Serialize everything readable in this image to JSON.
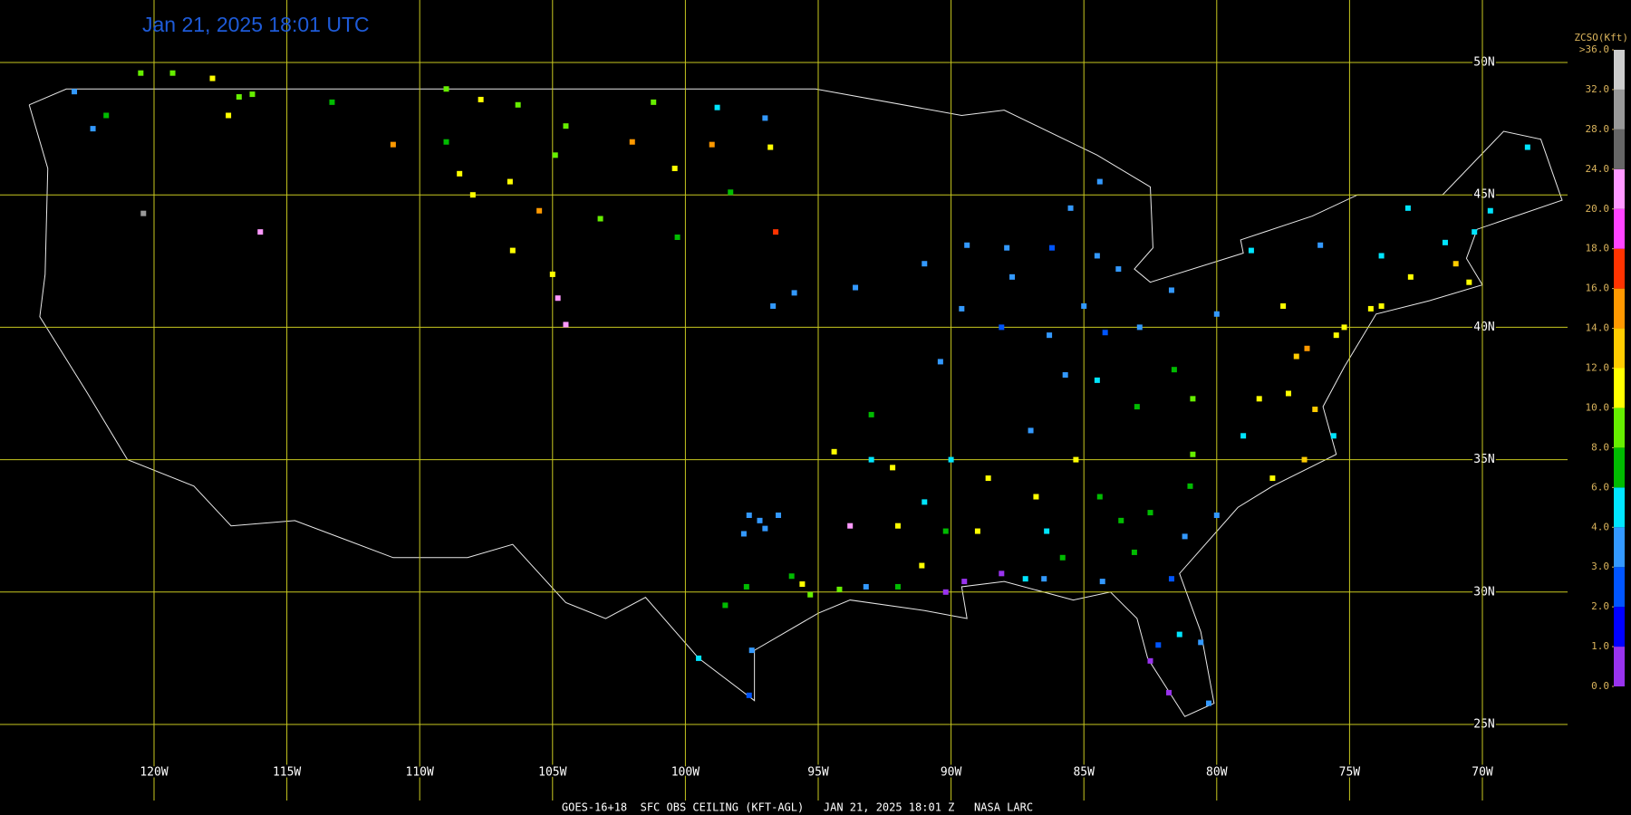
{
  "map": {
    "title": "Jan 21, 2025 18:01 UTC",
    "footer": "GOES-16+18  SFC OBS CEILING (KFT-AGL)   JAN 21, 2025 18:01 Z   NASA LARC",
    "lat_ticks": [
      {
        "value": 50,
        "label": "50N"
      },
      {
        "value": 45,
        "label": "45N"
      },
      {
        "value": 40,
        "label": "40N"
      },
      {
        "value": 35,
        "label": "35N"
      },
      {
        "value": 30,
        "label": "30N"
      },
      {
        "value": 25,
        "label": "25N"
      }
    ],
    "lon_ticks": [
      {
        "value": -120,
        "label": "120W"
      },
      {
        "value": -115,
        "label": "115W"
      },
      {
        "value": -110,
        "label": "110W"
      },
      {
        "value": -105,
        "label": "105W"
      },
      {
        "value": -100,
        "label": "100W"
      },
      {
        "value": -95,
        "label": "95W"
      },
      {
        "value": -90,
        "label": "90W"
      },
      {
        "value": -85,
        "label": "85W"
      },
      {
        "value": -80,
        "label": "80W"
      },
      {
        "value": -75,
        "label": "75W"
      },
      {
        "value": -70,
        "label": "70W"
      }
    ],
    "grid_color": "#c8c820",
    "legend": {
      "title": "ZCSO(Kft)",
      "ticks": [
        {
          "value": 0,
          "label": "0.0"
        },
        {
          "value": 1,
          "label": "1.0"
        },
        {
          "value": 2,
          "label": "2.0"
        },
        {
          "value": 3,
          "label": "3.0"
        },
        {
          "value": 4,
          "label": "4.0"
        },
        {
          "value": 6,
          "label": "6.0"
        },
        {
          "value": 8,
          "label": "8.0"
        },
        {
          "value": 10,
          "label": "10.0"
        },
        {
          "value": 12,
          "label": "12.0"
        },
        {
          "value": 14,
          "label": "14.0"
        },
        {
          "value": 16,
          "label": "16.0"
        },
        {
          "value": 18,
          "label": "18.0"
        },
        {
          "value": 20,
          "label": "20.0"
        },
        {
          "value": 24,
          "label": "24.0"
        },
        {
          "value": 28,
          "label": "28.0"
        },
        {
          "value": 32,
          "label": "32.0"
        },
        {
          "value": 36,
          "label": ">36.0"
        }
      ],
      "colors": [
        "#9933ee",
        "#0000ff",
        "#0055ff",
        "#3399ff",
        "#00e5ff",
        "#00bb00",
        "#66ee00",
        "#ffff00",
        "#ffcc00",
        "#ff9900",
        "#ff3300",
        "#ff44ff",
        "#ff99ff",
        "#666666",
        "#999999",
        "#cccccc"
      ]
    },
    "stations": [
      [
        -122.3,
        47.5,
        3
      ],
      [
        -123,
        48.9,
        3
      ],
      [
        -121.8,
        48,
        7
      ],
      [
        -120.5,
        49.6,
        9
      ],
      [
        -119.3,
        49.6,
        9
      ],
      [
        -117.8,
        49.4,
        11
      ],
      [
        -116.8,
        48.7,
        9
      ],
      [
        -116.3,
        48.8,
        8
      ],
      [
        -117.2,
        48,
        11
      ],
      [
        -113.3,
        48.5,
        7
      ],
      [
        -111,
        46.9,
        15
      ],
      [
        -109,
        49,
        8
      ],
      [
        -107.7,
        48.6,
        11
      ],
      [
        -106.3,
        48.4,
        9
      ],
      [
        -104.5,
        47.6,
        9
      ],
      [
        -109,
        47,
        7
      ],
      [
        -108.5,
        45.8,
        11
      ],
      [
        -106.6,
        45.5,
        11
      ],
      [
        -104.9,
        46.5,
        9
      ],
      [
        -102,
        47,
        15
      ],
      [
        -101.2,
        48.5,
        8
      ],
      [
        -98.8,
        48.3,
        5
      ],
      [
        -97,
        47.9,
        3
      ],
      [
        -99,
        46.9,
        15
      ],
      [
        -100.4,
        46,
        11
      ],
      [
        -96.8,
        46.8,
        11
      ],
      [
        -103.2,
        44.1,
        8
      ],
      [
        -100.3,
        43.4,
        7
      ],
      [
        -98.3,
        45.1,
        7
      ],
      [
        -96.6,
        43.6,
        16
      ],
      [
        -105.5,
        44.4,
        15
      ],
      [
        -108,
        45,
        11
      ],
      [
        -106.5,
        42.9,
        11
      ],
      [
        -105,
        42,
        11
      ],
      [
        -104.8,
        41.1,
        22
      ],
      [
        -104.5,
        40.1,
        22
      ],
      [
        -120.4,
        44.3,
        30
      ],
      [
        -116,
        43.6,
        22
      ],
      [
        -97.6,
        32.9,
        3
      ],
      [
        -97.2,
        32.7,
        3
      ],
      [
        -97,
        32.4,
        3
      ],
      [
        -96.5,
        32.9,
        3
      ],
      [
        -97.8,
        32.2,
        3
      ],
      [
        -95.6,
        30.3,
        11
      ],
      [
        -95.3,
        29.9,
        9
      ],
      [
        -96,
        30.6,
        7
      ],
      [
        -97.7,
        30.2,
        7
      ],
      [
        -98.5,
        29.5,
        7
      ],
      [
        -97.5,
        27.8,
        3
      ],
      [
        -97.6,
        26.1,
        2
      ],
      [
        -99.5,
        27.5,
        5
      ],
      [
        -94.2,
        30.1,
        9
      ],
      [
        -93.2,
        30.2,
        3
      ],
      [
        -92,
        30.2,
        7
      ],
      [
        -90.2,
        30,
        0.5
      ],
      [
        -89.5,
        30.4,
        0.5
      ],
      [
        -88.1,
        30.7,
        0.5
      ],
      [
        -86.5,
        30.5,
        3
      ],
      [
        -89,
        32.3,
        11
      ],
      [
        -91,
        33.4,
        5
      ],
      [
        -92.2,
        34.7,
        11
      ],
      [
        -93,
        35,
        5
      ],
      [
        -90,
        35,
        5
      ],
      [
        -88.6,
        34.3,
        11
      ],
      [
        -86.8,
        33.6,
        11
      ],
      [
        -86.4,
        32.3,
        5
      ],
      [
        -87,
        36.1,
        3
      ],
      [
        -85.3,
        35,
        11
      ],
      [
        -84.4,
        33.6,
        7
      ],
      [
        -83.6,
        32.7,
        7
      ],
      [
        -82.5,
        33,
        7
      ],
      [
        -81.2,
        32.1,
        3
      ],
      [
        -80,
        32.9,
        3
      ],
      [
        -81,
        34,
        7
      ],
      [
        -80.9,
        35.2,
        9
      ],
      [
        -79,
        35.9,
        5
      ],
      [
        -77.9,
        34.3,
        11
      ],
      [
        -76.7,
        35,
        12
      ],
      [
        -75.6,
        35.9,
        5
      ],
      [
        -78.4,
        37.3,
        11
      ],
      [
        -77.3,
        37.5,
        11
      ],
      [
        -76.3,
        36.9,
        13
      ],
      [
        -77,
        38.9,
        13
      ],
      [
        -76.6,
        39.2,
        15
      ],
      [
        -75.5,
        39.7,
        11
      ],
      [
        -77.5,
        40.8,
        11
      ],
      [
        -75.2,
        40,
        11
      ],
      [
        -74.2,
        40.7,
        11
      ],
      [
        -73.8,
        40.8,
        11
      ],
      [
        -72.7,
        41.9,
        11
      ],
      [
        -71,
        42.4,
        13
      ],
      [
        -70.5,
        41.7,
        11
      ],
      [
        -71.4,
        43.2,
        5
      ],
      [
        -72.8,
        44.5,
        5
      ],
      [
        -69.7,
        44.4,
        4
      ],
      [
        -68.3,
        46.8,
        5
      ],
      [
        -70.3,
        43.6,
        5
      ],
      [
        -73.8,
        42.7,
        5
      ],
      [
        -76.1,
        43.1,
        3
      ],
      [
        -78.7,
        42.9,
        5
      ],
      [
        -80,
        40.5,
        3
      ],
      [
        -81.7,
        41.4,
        3
      ],
      [
        -83.7,
        42.2,
        3
      ],
      [
        -84.5,
        42.7,
        3
      ],
      [
        -85.5,
        44.5,
        3
      ],
      [
        -84.4,
        45.5,
        3
      ],
      [
        -86.2,
        43,
        2
      ],
      [
        -87.9,
        43,
        3
      ],
      [
        -89.4,
        43.1,
        3
      ],
      [
        -87.7,
        41.9,
        3
      ],
      [
        -89.6,
        40.7,
        3
      ],
      [
        -86.3,
        39.7,
        3
      ],
      [
        -90.4,
        38.7,
        3
      ],
      [
        -88.1,
        40,
        2
      ],
      [
        -85,
        40.8,
        3
      ],
      [
        -84.2,
        39.8,
        2
      ],
      [
        -82.9,
        40,
        3
      ],
      [
        -84.5,
        38,
        5
      ],
      [
        -85.7,
        38.2,
        3
      ],
      [
        -83,
        37,
        7
      ],
      [
        -81.6,
        38.4,
        7
      ],
      [
        -80.9,
        37.3,
        9
      ],
      [
        -82.2,
        28,
        2
      ],
      [
        -81.4,
        28.4,
        4
      ],
      [
        -80.6,
        28.1,
        3
      ],
      [
        -82.5,
        27.4,
        0.5
      ],
      [
        -81.8,
        26.2,
        0.5
      ],
      [
        -80.3,
        25.8,
        3
      ],
      [
        -81.7,
        30.5,
        2
      ],
      [
        -84.3,
        30.4,
        3
      ],
      [
        -87.2,
        30.5,
        5
      ],
      [
        -85.8,
        31.3,
        7
      ],
      [
        -83.1,
        31.5,
        7
      ],
      [
        -91.1,
        31,
        11
      ],
      [
        -90.2,
        32.3,
        7
      ],
      [
        -92,
        32.5,
        11
      ],
      [
        -93.8,
        32.5,
        22
      ],
      [
        -94.4,
        35.3,
        11
      ],
      [
        -93,
        36.7,
        7
      ],
      [
        -91,
        42.4,
        3
      ],
      [
        -93.6,
        41.5,
        3
      ],
      [
        -95.9,
        41.3,
        3
      ],
      [
        -96.7,
        40.8,
        3
      ]
    ]
  }
}
